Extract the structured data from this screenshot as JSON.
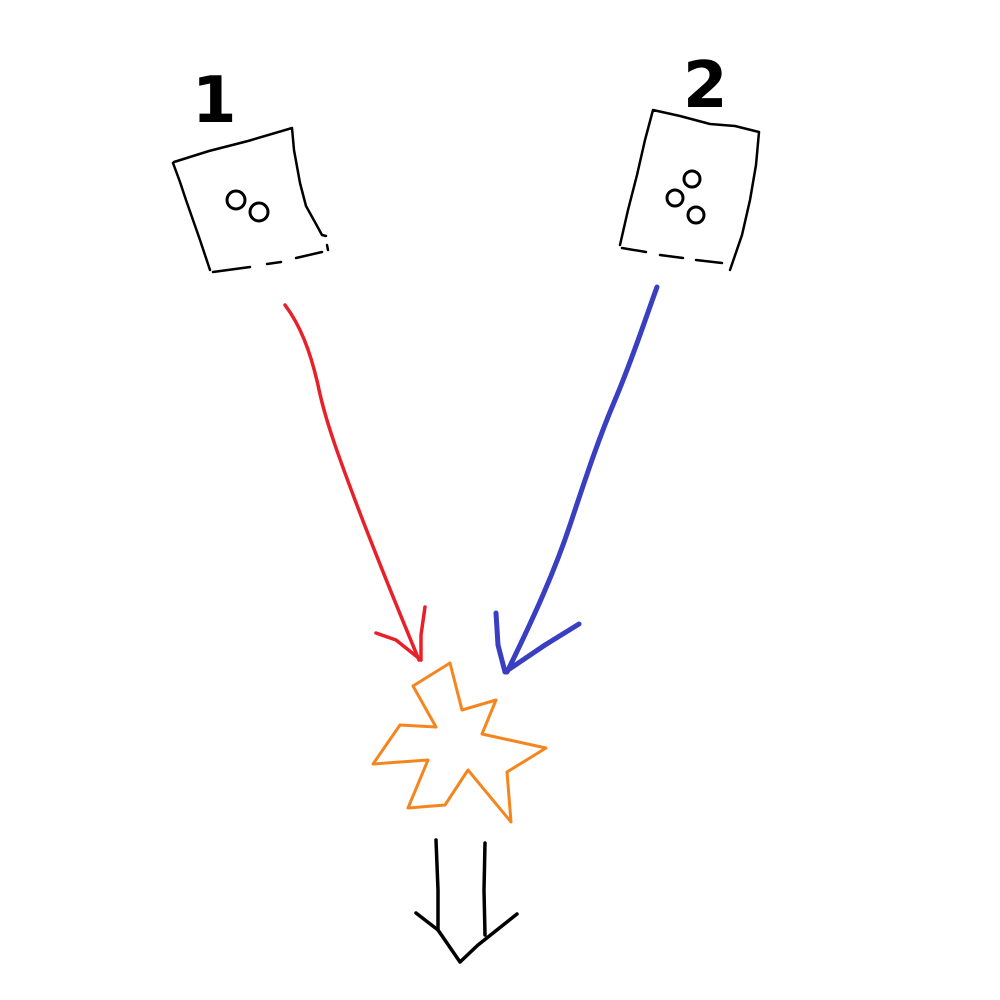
{
  "labels": {
    "box1": "1",
    "box2": "2"
  },
  "colors": {
    "ink": "#000000",
    "arrow_from_box1": "#e8202a",
    "arrow_from_box2": "#3a3fc2",
    "collision_burst": "#f5861f",
    "result_arrow": "#000000"
  },
  "box1": {
    "circle_count": 2
  },
  "box2": {
    "circle_count": 3
  }
}
